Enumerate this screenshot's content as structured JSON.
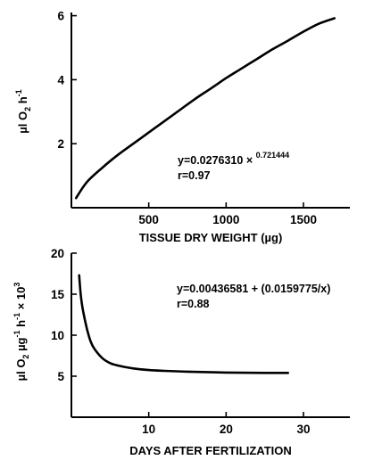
{
  "chart_data": [
    {
      "type": "line",
      "xlabel": "TISSUE DRY WEIGHT (µg)",
      "ylabel": {
        "prefix": "µl O",
        "sub": "2",
        "mid": " h",
        "sup": "-1"
      },
      "xlim": [
        0,
        1800
      ],
      "ylim": [
        0,
        6.1
      ],
      "xticks": [
        500,
        1000,
        1500
      ],
      "yticks": [
        2,
        4,
        6
      ],
      "equation": {
        "base": "y=0.0276310 × ",
        "sup": "0.721444"
      },
      "r_text": "r=0.97",
      "series": [
        {
          "x": [
            30,
            100,
            200,
            300,
            400,
            500,
            600,
            700,
            800,
            900,
            1000,
            1100,
            1200,
            1300,
            1400,
            1500,
            1600,
            1700
          ],
          "y": [
            0.3,
            0.8,
            1.25,
            1.65,
            2.0,
            2.35,
            2.7,
            3.05,
            3.4,
            3.72,
            4.05,
            4.35,
            4.65,
            4.95,
            5.22,
            5.5,
            5.75,
            5.92
          ]
        }
      ]
    },
    {
      "type": "line",
      "xlabel": "DAYS AFTER FERTILIZATION",
      "ylabel": {
        "prefix": "µl O",
        "sub": "2",
        "mid": " µg",
        "sup": "-1",
        "mid2": " h",
        "sup2": "-1",
        "tail": " × 10",
        "sup3": "3"
      },
      "xlim": [
        0,
        36
      ],
      "ylim": [
        0,
        20
      ],
      "xticks": [
        10,
        20,
        30
      ],
      "yticks": [
        5,
        10,
        15,
        20
      ],
      "equation": {
        "base": "y=0.00436581 + (0.0159775/x)"
      },
      "r_text": "r=0.88",
      "series": [
        {
          "x": [
            1.0,
            1.2,
            1.5,
            2,
            2.5,
            3,
            4,
            5,
            6,
            8,
            10,
            12,
            15,
            20,
            25,
            28
          ],
          "y": [
            17.3,
            15.0,
            13.0,
            10.8,
            9.2,
            8.3,
            7.2,
            6.6,
            6.3,
            5.95,
            5.75,
            5.65,
            5.55,
            5.45,
            5.4,
            5.4
          ]
        }
      ]
    }
  ]
}
